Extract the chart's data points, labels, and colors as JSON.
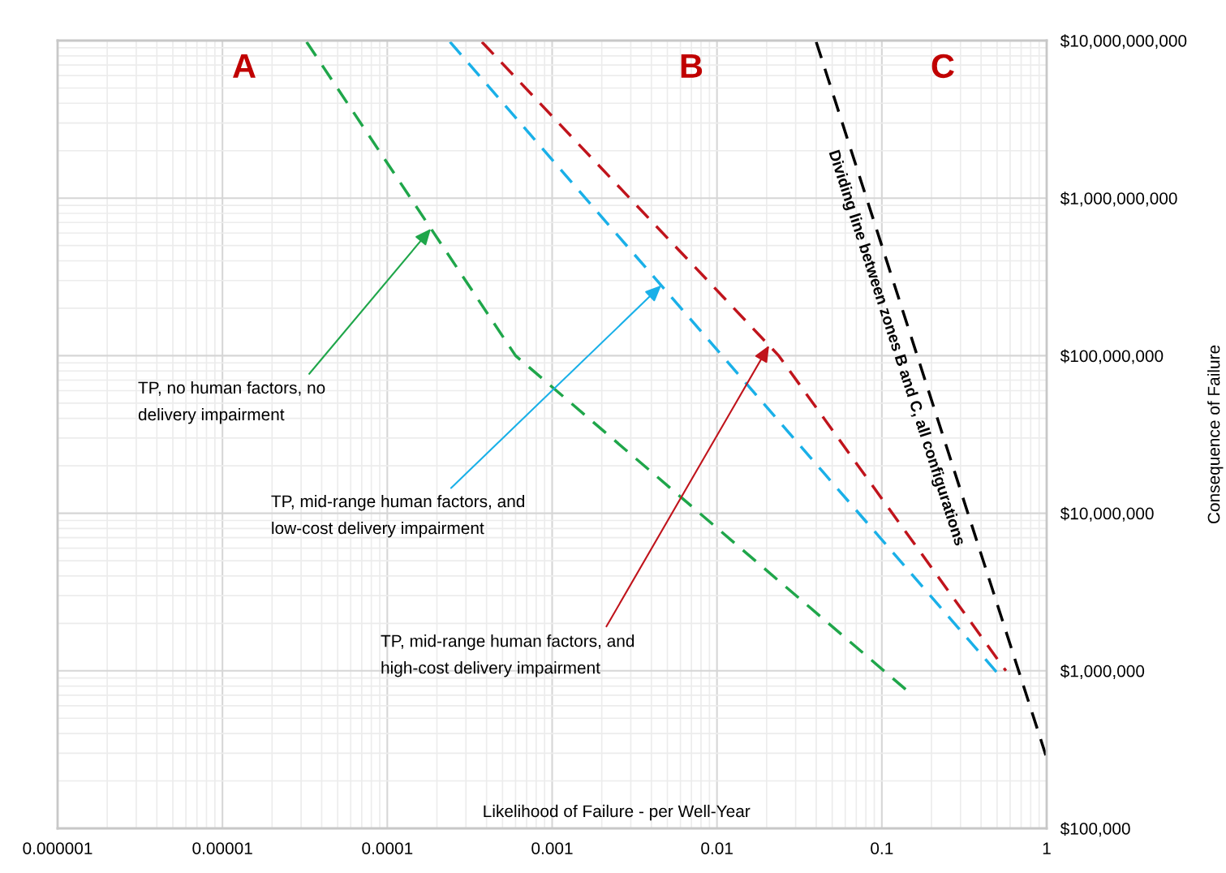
{
  "chart_data": {
    "type": "line",
    "xlabel": "Likelihood of Failure - per Well-Year",
    "ylabel": "Consequence of Failure",
    "log": "xy",
    "grid": true,
    "legend": false,
    "line_style": "dashed",
    "marker": "none",
    "xlim": [
      1e-06,
      1
    ],
    "ylim": [
      100000,
      10000000000
    ],
    "xticks": [
      {
        "value": 1e-06,
        "label": "0.000001"
      },
      {
        "value": 1e-05,
        "label": "0.00001"
      },
      {
        "value": 0.0001,
        "label": "0.0001"
      },
      {
        "value": 0.001,
        "label": "0.001"
      },
      {
        "value": 0.01,
        "label": "0.01"
      },
      {
        "value": 0.1,
        "label": "0.1"
      },
      {
        "value": 1,
        "label": "1"
      }
    ],
    "yticks": [
      {
        "value": 100000,
        "label": "$100,000"
      },
      {
        "value": 1000000,
        "label": "$1,000,000"
      },
      {
        "value": 10000000,
        "label": "$10,000,000"
      },
      {
        "value": 100000000,
        "label": "$100,000,000"
      },
      {
        "value": 1000000000,
        "label": "$1,000,000,000"
      },
      {
        "value": 10000000000,
        "label": "$10,000,000,000"
      }
    ],
    "series": [
      {
        "color": "#1fa64a",
        "x": [
          3.24e-05,
          0.0006,
          0.14
        ],
        "values": [
          9800000000,
          100000000,
          760000
        ]
      },
      {
        "color": "#1ab0e8",
        "x": [
          0.00024,
          0.506
        ],
        "values": [
          9800000000,
          960000
        ]
      },
      {
        "color": "#c0141c",
        "x": [
          0.000375,
          0.0237,
          0.566
        ],
        "values": [
          9800000000,
          100000000,
          1000000
        ]
      },
      {
        "name": "Dividing line between zones B and C, all configurations",
        "color": "#000000",
        "x": [
          0.04,
          1
        ],
        "values": [
          9800000000,
          280000
        ]
      }
    ],
    "annotations": [
      "A",
      "B",
      "C",
      {
        "text": "TP, no human factors, no\ndelivery impairment",
        "x": 0.000184,
        "y": 640000000
      },
      {
        "text": "TP, mid-range human factors, and\nlow-cost delivery impairment",
        "x": 0.0046,
        "y": 280000000
      },
      {
        "text": "TP, mid-range human factors, and\nhigh-cost delivery impairment",
        "x": 0.0207,
        "y": 116000000
      }
    ]
  }
}
